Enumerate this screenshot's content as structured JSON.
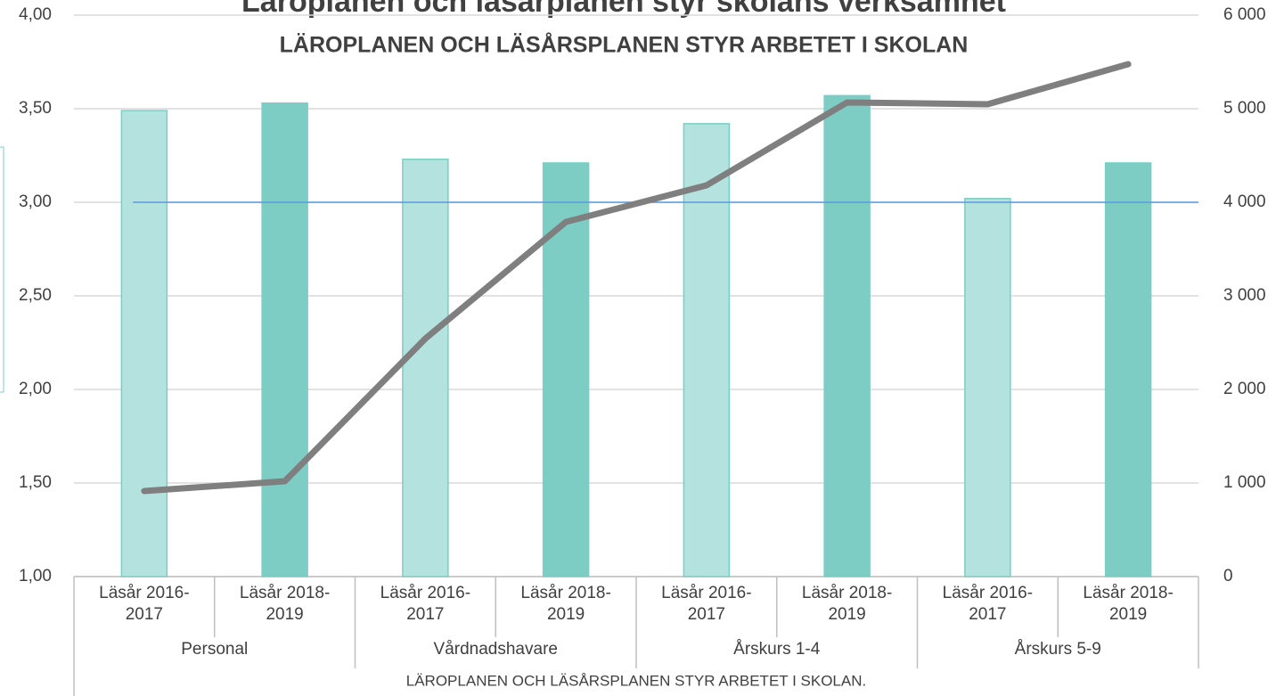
{
  "chart_data": {
    "type": "bar_line",
    "title": "Läroplanen och läsårplanen styr skolans verksamhet",
    "subtitle": "LÄROPLANEN OCH LÄSÅRSPLANEN STYR ARBETET I SKOLAN",
    "x_label": "LÄROPLANEN OCH LÄSÅRSPLANEN STYR ARBETET I SKOLAN.",
    "categories": [
      "Läsår 2016-2017",
      "Läsår 2018-2019",
      "Läsår 2016-2017",
      "Läsår 2018-2019",
      "Läsår 2016-2017",
      "Läsår 2018-2019",
      "Läsår 2016-2017",
      "Läsår 2018-2019"
    ],
    "groups": [
      "Personal",
      "Vårdnadshavare",
      "Årskurs 1-4",
      "Årskurs 5-9"
    ],
    "bars": {
      "values": [
        3.49,
        3.53,
        3.23,
        3.21,
        3.42,
        3.57,
        3.02,
        3.21
      ],
      "colors": [
        "#b4e2df",
        "#7dcdc5",
        "#b4e2df",
        "#7dcdc5",
        "#b4e2df",
        "#7dcdc5",
        "#b4e2df",
        "#7dcdc5"
      ]
    },
    "line": {
      "axis": "y2",
      "color": "#7f7f7f",
      "values": [
        914,
        1019,
        2543,
        3790,
        4181,
        5067,
        5048,
        5476
      ]
    },
    "reference_line": {
      "value": 3,
      "color": "#5b9bd5"
    },
    "ylim": [
      1,
      4
    ],
    "yticks": [
      {
        "value": 1,
        "label": "1,00"
      },
      {
        "value": 1.5,
        "label": "1,50"
      },
      {
        "value": 2,
        "label": "2,00"
      },
      {
        "value": 2.5,
        "label": "2,50"
      },
      {
        "value": 3,
        "label": "3,00"
      },
      {
        "value": 3.5,
        "label": "3,50"
      },
      {
        "value": 4,
        "label": "4,00"
      }
    ],
    "y2lim": [
      0,
      6000
    ],
    "y2ticks": [
      0,
      {
        "value": 1000,
        "label": "1 000"
      },
      {
        "value": 2000,
        "label": "2 000"
      },
      {
        "value": 3000,
        "label": "3 000"
      },
      {
        "value": 4000,
        "label": "4 000"
      },
      {
        "value": 5000,
        "label": "5 000"
      },
      {
        "value": 6000,
        "label": "6 000"
      }
    ],
    "grid": true
  }
}
